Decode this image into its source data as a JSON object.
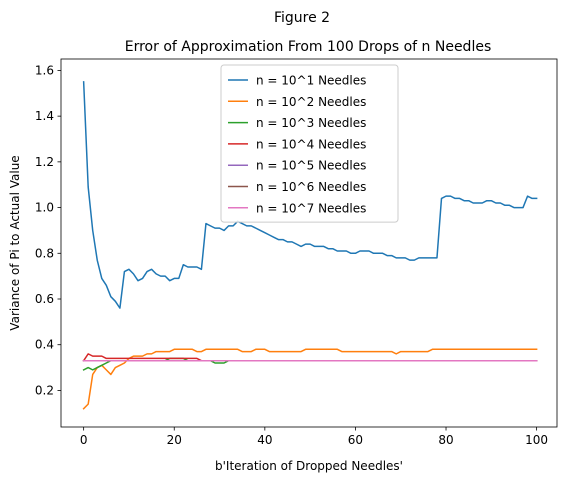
{
  "figure": {
    "suptitle": "Figure 2"
  },
  "chart_data": {
    "type": "line",
    "title": "Error of Approximation From 100 Drops of n Needles",
    "xlabel": "b'Iteration of Dropped Needles'",
    "ylabel": "Variance of Pi to Actual Value",
    "xlim": [
      -5,
      104.5
    ],
    "ylim": [
      0.04,
      1.65
    ],
    "xticks": [
      0,
      20,
      40,
      60,
      80,
      100
    ],
    "yticks": [
      0.2,
      0.4,
      0.6,
      0.8,
      1.0,
      1.2,
      1.4,
      1.6
    ],
    "ytick_labels": [
      "0.2",
      "0.4",
      "0.6",
      "0.8",
      "1.0",
      "1.2",
      "1.4",
      "1.6"
    ],
    "grid": false,
    "legend_position": "top-center",
    "series": [
      {
        "name": "n = 10^1 Needles",
        "color": "#1f77b4",
        "values": [
          1.55,
          1.09,
          0.9,
          0.77,
          0.69,
          0.66,
          0.61,
          0.59,
          0.56,
          0.72,
          0.73,
          0.71,
          0.68,
          0.69,
          0.72,
          0.73,
          0.71,
          0.7,
          0.7,
          0.68,
          0.69,
          0.69,
          0.75,
          0.74,
          0.74,
          0.74,
          0.73,
          0.93,
          0.92,
          0.91,
          0.91,
          0.9,
          0.92,
          0.92,
          0.94,
          0.93,
          0.92,
          0.92,
          0.91,
          0.9,
          0.89,
          0.88,
          0.87,
          0.86,
          0.86,
          0.85,
          0.85,
          0.84,
          0.83,
          0.84,
          0.84,
          0.83,
          0.83,
          0.83,
          0.82,
          0.82,
          0.81,
          0.81,
          0.81,
          0.8,
          0.8,
          0.81,
          0.81,
          0.81,
          0.8,
          0.8,
          0.8,
          0.79,
          0.79,
          0.78,
          0.78,
          0.78,
          0.77,
          0.77,
          0.78,
          0.78,
          0.78,
          0.78,
          0.78,
          1.04,
          1.05,
          1.05,
          1.04,
          1.04,
          1.03,
          1.03,
          1.02,
          1.02,
          1.02,
          1.03,
          1.03,
          1.02,
          1.02,
          1.01,
          1.01,
          1.0,
          1.0,
          1.0,
          1.05,
          1.04,
          1.04
        ]
      },
      {
        "name": "n = 10^2 Needles",
        "color": "#ff7f0e",
        "values": [
          0.12,
          0.14,
          0.27,
          0.3,
          0.31,
          0.29,
          0.27,
          0.3,
          0.31,
          0.32,
          0.34,
          0.35,
          0.35,
          0.35,
          0.36,
          0.36,
          0.37,
          0.37,
          0.37,
          0.37,
          0.38,
          0.38,
          0.38,
          0.38,
          0.38,
          0.37,
          0.37,
          0.38,
          0.38,
          0.38,
          0.38,
          0.38,
          0.38,
          0.38,
          0.38,
          0.37,
          0.37,
          0.37,
          0.38,
          0.38,
          0.38,
          0.37,
          0.37,
          0.37,
          0.37,
          0.37,
          0.37,
          0.37,
          0.37,
          0.38,
          0.38,
          0.38,
          0.38,
          0.38,
          0.38,
          0.38,
          0.38,
          0.37,
          0.37,
          0.37,
          0.37,
          0.37,
          0.37,
          0.37,
          0.37,
          0.37,
          0.37,
          0.37,
          0.37,
          0.36,
          0.37,
          0.37,
          0.37,
          0.37,
          0.37,
          0.37,
          0.37,
          0.38,
          0.38,
          0.38,
          0.38,
          0.38,
          0.38,
          0.38,
          0.38,
          0.38,
          0.38,
          0.38,
          0.38,
          0.38,
          0.38,
          0.38,
          0.38,
          0.38,
          0.38,
          0.38,
          0.38,
          0.38,
          0.38,
          0.38,
          0.38
        ]
      },
      {
        "name": "n = 10^3 Needles",
        "color": "#2ca02c",
        "values": [
          0.29,
          0.3,
          0.29,
          0.3,
          0.31,
          0.32,
          0.33,
          0.33,
          0.33,
          0.33,
          0.33,
          0.33,
          0.33,
          0.33,
          0.33,
          0.33,
          0.33,
          0.33,
          0.33,
          0.34,
          0.34,
          0.34,
          0.34,
          0.33,
          0.33,
          0.33,
          0.33,
          0.33,
          0.33,
          0.32,
          0.32,
          0.32,
          0.33,
          0.33,
          0.33,
          0.33,
          0.33,
          0.33,
          0.33,
          0.33,
          0.33,
          0.33,
          0.33,
          0.33,
          0.33,
          0.33,
          0.33,
          0.33,
          0.33,
          0.33,
          0.33,
          0.33,
          0.33,
          0.33,
          0.33,
          0.33,
          0.33,
          0.33,
          0.33,
          0.33,
          0.33,
          0.33,
          0.33,
          0.33,
          0.33,
          0.33,
          0.33,
          0.33,
          0.33,
          0.33,
          0.33,
          0.33,
          0.33,
          0.33,
          0.33,
          0.33,
          0.33,
          0.33,
          0.33,
          0.33,
          0.33,
          0.33,
          0.33,
          0.33,
          0.33,
          0.33,
          0.33,
          0.33,
          0.33,
          0.33,
          0.33,
          0.33,
          0.33,
          0.33,
          0.33,
          0.33,
          0.33,
          0.33,
          0.33,
          0.33,
          0.33
        ]
      },
      {
        "name": "n = 10^4 Needles",
        "color": "#d62728",
        "values": [
          0.33,
          0.36,
          0.35,
          0.35,
          0.35,
          0.34,
          0.34,
          0.34,
          0.34,
          0.34,
          0.34,
          0.34,
          0.34,
          0.34,
          0.34,
          0.34,
          0.34,
          0.34,
          0.34,
          0.34,
          0.34,
          0.34,
          0.34,
          0.34,
          0.34,
          0.34,
          0.33,
          0.33,
          0.33,
          0.33,
          0.33,
          0.33,
          0.33,
          0.33,
          0.33,
          0.33,
          0.33,
          0.33,
          0.33,
          0.33,
          0.33,
          0.33,
          0.33,
          0.33,
          0.33,
          0.33,
          0.33,
          0.33,
          0.33,
          0.33,
          0.33,
          0.33,
          0.33,
          0.33,
          0.33,
          0.33,
          0.33,
          0.33,
          0.33,
          0.33,
          0.33,
          0.33,
          0.33,
          0.33,
          0.33,
          0.33,
          0.33,
          0.33,
          0.33,
          0.33,
          0.33,
          0.33,
          0.33,
          0.33,
          0.33,
          0.33,
          0.33,
          0.33,
          0.33,
          0.33,
          0.33,
          0.33,
          0.33,
          0.33,
          0.33,
          0.33,
          0.33,
          0.33,
          0.33,
          0.33,
          0.33,
          0.33,
          0.33,
          0.33,
          0.33,
          0.33,
          0.33,
          0.33,
          0.33,
          0.33,
          0.33
        ]
      },
      {
        "name": "n = 10^5 Needles",
        "color": "#9467bd",
        "values": [
          0.33,
          0.33,
          0.33,
          0.33,
          0.33,
          0.33,
          0.33,
          0.33,
          0.33,
          0.33,
          0.33,
          0.33,
          0.33,
          0.33,
          0.33,
          0.33,
          0.33,
          0.33,
          0.33,
          0.33,
          0.33,
          0.33,
          0.33,
          0.33,
          0.33,
          0.33,
          0.33,
          0.33,
          0.33,
          0.33,
          0.33,
          0.33,
          0.33,
          0.33,
          0.33,
          0.33,
          0.33,
          0.33,
          0.33,
          0.33,
          0.33,
          0.33,
          0.33,
          0.33,
          0.33,
          0.33,
          0.33,
          0.33,
          0.33,
          0.33,
          0.33,
          0.33,
          0.33,
          0.33,
          0.33,
          0.33,
          0.33,
          0.33,
          0.33,
          0.33,
          0.33,
          0.33,
          0.33,
          0.33,
          0.33,
          0.33,
          0.33,
          0.33,
          0.33,
          0.33,
          0.33,
          0.33,
          0.33,
          0.33,
          0.33,
          0.33,
          0.33,
          0.33,
          0.33,
          0.33,
          0.33,
          0.33,
          0.33,
          0.33,
          0.33,
          0.33,
          0.33,
          0.33,
          0.33,
          0.33,
          0.33,
          0.33,
          0.33,
          0.33,
          0.33,
          0.33,
          0.33,
          0.33,
          0.33,
          0.33,
          0.33
        ]
      },
      {
        "name": "n = 10^6 Needles",
        "color": "#8c564b",
        "values": [
          0.33,
          0.33,
          0.33,
          0.33,
          0.33,
          0.33,
          0.33,
          0.33,
          0.33,
          0.33,
          0.33,
          0.33,
          0.33,
          0.33,
          0.33,
          0.33,
          0.33,
          0.33,
          0.33,
          0.33,
          0.33,
          0.33,
          0.33,
          0.33,
          0.33,
          0.33,
          0.33,
          0.33,
          0.33,
          0.33,
          0.33,
          0.33,
          0.33,
          0.33,
          0.33,
          0.33,
          0.33,
          0.33,
          0.33,
          0.33,
          0.33,
          0.33,
          0.33,
          0.33,
          0.33,
          0.33,
          0.33,
          0.33,
          0.33,
          0.33,
          0.33,
          0.33,
          0.33,
          0.33,
          0.33,
          0.33,
          0.33,
          0.33,
          0.33,
          0.33,
          0.33,
          0.33,
          0.33,
          0.33,
          0.33,
          0.33,
          0.33,
          0.33,
          0.33,
          0.33,
          0.33,
          0.33,
          0.33,
          0.33,
          0.33,
          0.33,
          0.33,
          0.33,
          0.33,
          0.33,
          0.33,
          0.33,
          0.33,
          0.33,
          0.33,
          0.33,
          0.33,
          0.33,
          0.33,
          0.33,
          0.33,
          0.33,
          0.33,
          0.33,
          0.33,
          0.33,
          0.33,
          0.33,
          0.33,
          0.33,
          0.33
        ]
      },
      {
        "name": "n = 10^7 Needles",
        "color": "#e377c2",
        "values": [
          0.33,
          0.33,
          0.33,
          0.33,
          0.33,
          0.33,
          0.33,
          0.33,
          0.33,
          0.33,
          0.33,
          0.33,
          0.33,
          0.33,
          0.33,
          0.33,
          0.33,
          0.33,
          0.33,
          0.33,
          0.33,
          0.33,
          0.33,
          0.33,
          0.33,
          0.33,
          0.33,
          0.33,
          0.33,
          0.33,
          0.33,
          0.33,
          0.33,
          0.33,
          0.33,
          0.33,
          0.33,
          0.33,
          0.33,
          0.33,
          0.33,
          0.33,
          0.33,
          0.33,
          0.33,
          0.33,
          0.33,
          0.33,
          0.33,
          0.33,
          0.33,
          0.33,
          0.33,
          0.33,
          0.33,
          0.33,
          0.33,
          0.33,
          0.33,
          0.33,
          0.33,
          0.33,
          0.33,
          0.33,
          0.33,
          0.33,
          0.33,
          0.33,
          0.33,
          0.33,
          0.33,
          0.33,
          0.33,
          0.33,
          0.33,
          0.33,
          0.33,
          0.33,
          0.33,
          0.33,
          0.33,
          0.33,
          0.33,
          0.33,
          0.33,
          0.33,
          0.33,
          0.33,
          0.33,
          0.33,
          0.33,
          0.33,
          0.33,
          0.33,
          0.33,
          0.33,
          0.33,
          0.33,
          0.33,
          0.33,
          0.33
        ]
      }
    ]
  }
}
